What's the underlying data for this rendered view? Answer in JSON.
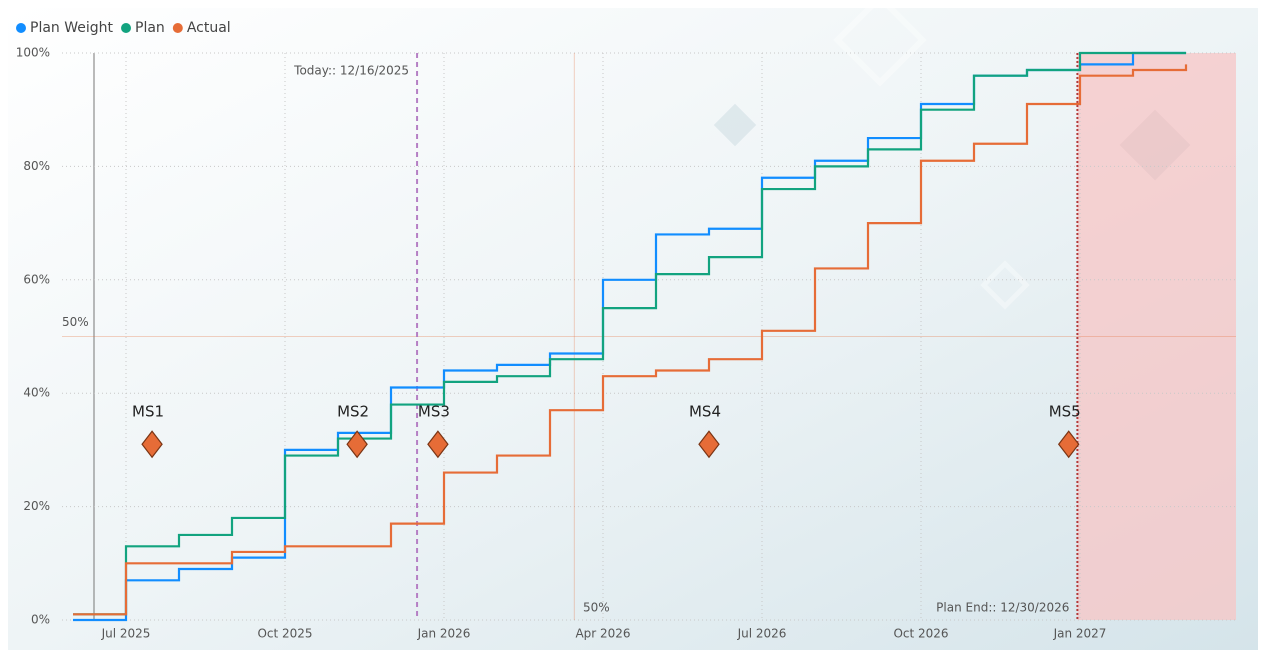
{
  "chart_data": {
    "type": "step",
    "x": [
      "2025-06",
      "2025-07",
      "2025-08",
      "2025-09",
      "2025-10",
      "2025-11",
      "2025-12",
      "2026-01",
      "2026-02",
      "2026-03",
      "2026-04",
      "2026-05",
      "2026-06",
      "2026-07",
      "2026-08",
      "2026-09",
      "2026-10",
      "2026-11",
      "2026-12",
      "2027-01",
      "2027-02",
      "2027-03"
    ],
    "series": [
      {
        "name": "Plan Weight",
        "color": "#118dff",
        "values": [
          0,
          7,
          9,
          11,
          30,
          33,
          41,
          44,
          45,
          47,
          60,
          68,
          69,
          78,
          81,
          85,
          91,
          96,
          97,
          98,
          100,
          100
        ]
      },
      {
        "name": "Plan",
        "color": "#12a37f",
        "values": [
          1,
          13,
          15,
          18,
          29,
          32,
          38,
          42,
          43,
          46,
          55,
          61,
          64,
          76,
          80,
          83,
          90,
          96,
          97,
          100,
          100,
          100
        ]
      },
      {
        "name": "Actual",
        "color": "#e66c37",
        "values": [
          1,
          10,
          10,
          12,
          13,
          13,
          17,
          26,
          29,
          37,
          43,
          44,
          46,
          51,
          62,
          70,
          81,
          84,
          91,
          96,
          97,
          98
        ]
      }
    ],
    "xlim": [
      "2025-06",
      "2027-04"
    ],
    "xticks": [
      {
        "value": "2025-07",
        "label": "Jul 2025"
      },
      {
        "value": "2025-10",
        "label": "Oct 2025"
      },
      {
        "value": "2026-01",
        "label": "Jan 2026"
      },
      {
        "value": "2026-04",
        "label": "Apr 2026"
      },
      {
        "value": "2026-07",
        "label": "Jul 2026"
      },
      {
        "value": "2026-10",
        "label": "Oct 2026"
      },
      {
        "value": "2027-01",
        "label": "Jan 2027"
      }
    ],
    "ylim": [
      0,
      100
    ],
    "yticks": [
      {
        "value": 0,
        "label": "0%"
      },
      {
        "value": 20,
        "label": "20%"
      },
      {
        "value": 40,
        "label": "40%"
      },
      {
        "value": 60,
        "label": "60%"
      },
      {
        "value": 80,
        "label": "80%"
      },
      {
        "value": 100,
        "label": "100%"
      }
    ],
    "grid": true,
    "legend": "top-left",
    "today_line": {
      "label": "Today:: 12/16/2025",
      "x": "2025-12-16",
      "color": "#b57fc4"
    },
    "plan_end": {
      "label": "Plan End:: 12/30/2026",
      "x": "2026-12-30",
      "color": "#b33a3a"
    },
    "reference_y": {
      "y": 50,
      "label": "50%",
      "color": "#e66c37"
    },
    "reference_x": {
      "x": "2026-03-15",
      "label": "50%",
      "color": "#e66c37"
    },
    "milestones": [
      {
        "label": "MS1",
        "x": "2025-07-16",
        "y": 31
      },
      {
        "label": "MS2",
        "x": "2025-11-12",
        "y": 31
      },
      {
        "label": "MS3",
        "x": "2025-12-28",
        "y": 31
      },
      {
        "label": "MS4",
        "x": "2026-06-01",
        "y": 31
      },
      {
        "label": "MS5",
        "x": "2026-12-25",
        "y": 31
      }
    ],
    "milestone_color": "#e66c37"
  }
}
